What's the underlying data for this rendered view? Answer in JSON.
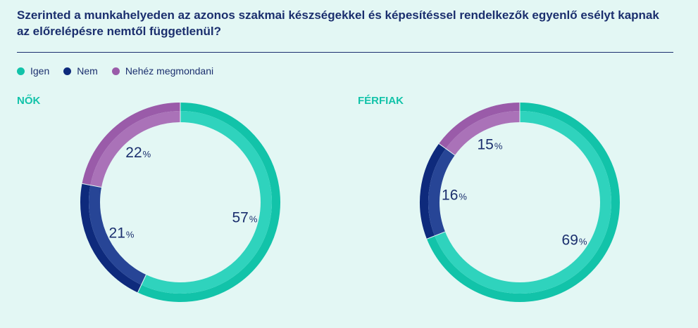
{
  "title": "Szerinted a munkahelyeden az azonos szakmai készségekkel és képesítéssel rendelkezők egyenlő esélyt kapnak az előrelépésre nemtől függetlenül?",
  "legend": [
    {
      "label": "Igen",
      "color": "#12c3a9"
    },
    {
      "label": "Nem",
      "color": "#0e2a7c"
    },
    {
      "label": "Nehéz megmondani",
      "color": "#9a5ba9"
    }
  ],
  "chart_data": [
    {
      "type": "pie",
      "title": "NŐK",
      "categories": [
        "Igen",
        "Nem",
        "Nehéz megmondani"
      ],
      "values": [
        57,
        21,
        22
      ],
      "unit": "%"
    },
    {
      "type": "pie",
      "title": "FÉRFIAK",
      "categories": [
        "Igen",
        "Nem",
        "Nehéz megmondani"
      ],
      "values": [
        69,
        16,
        15
      ],
      "unit": "%"
    }
  ]
}
